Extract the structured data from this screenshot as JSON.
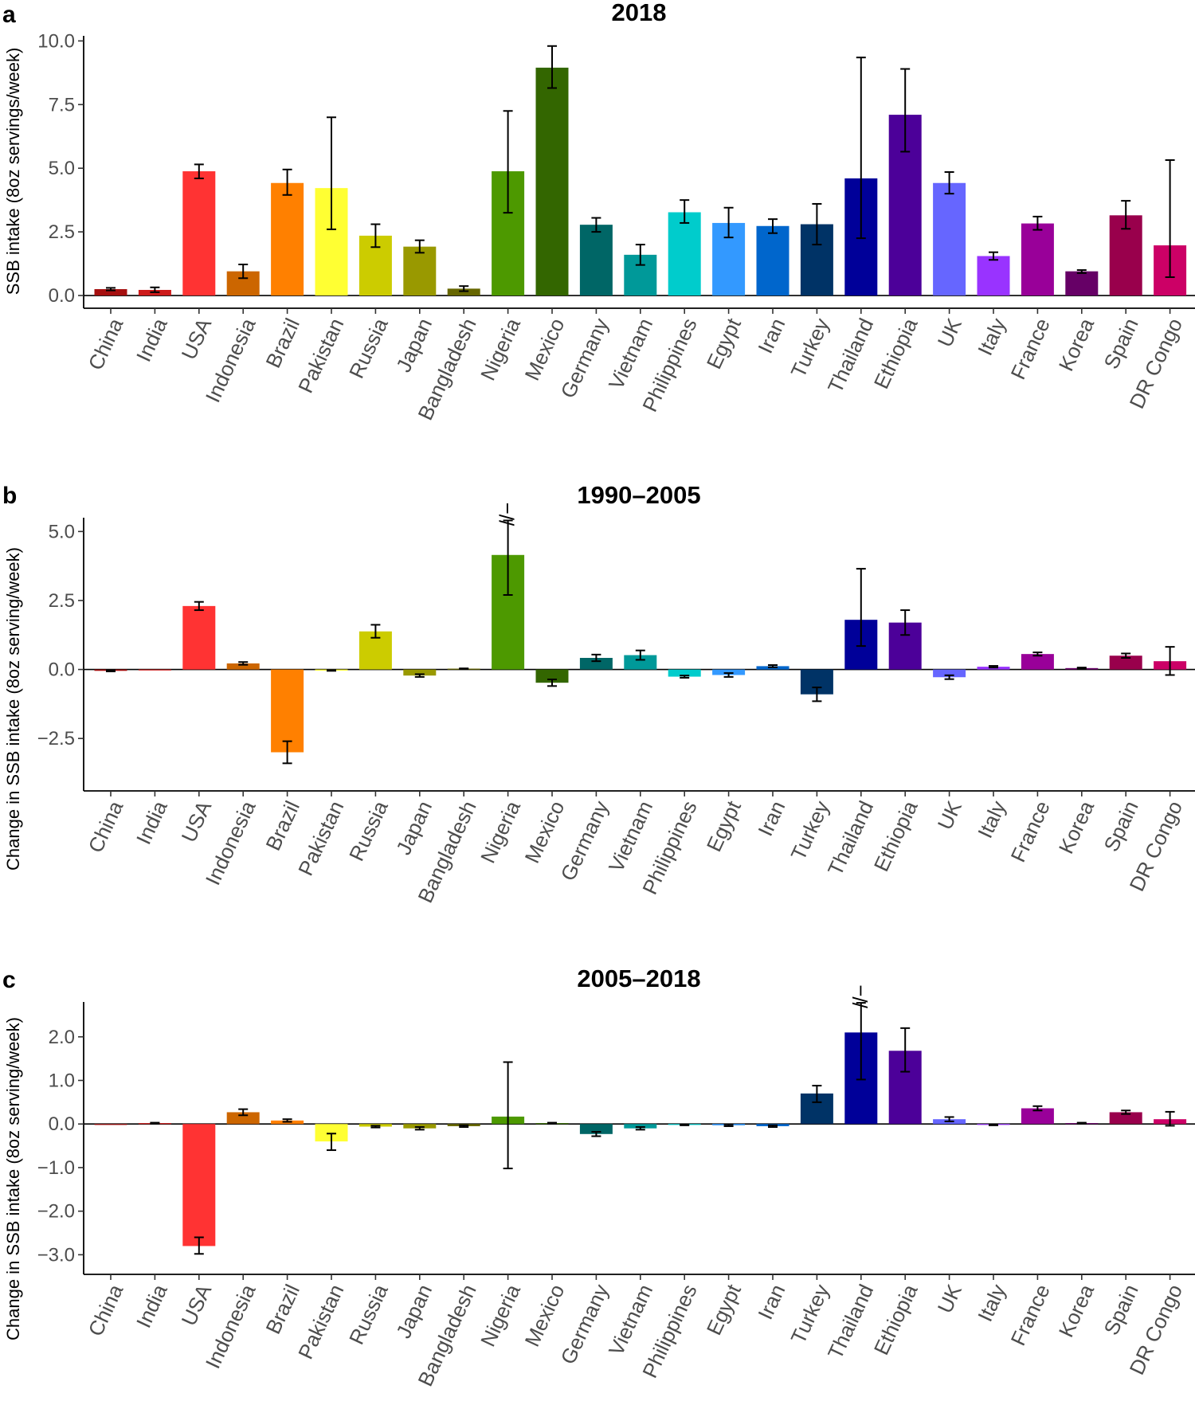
{
  "countries": [
    "China",
    "India",
    "USA",
    "Indonesia",
    "Brazil",
    "Pakistan",
    "Russia",
    "Japan",
    "Bangladesh",
    "Nigeria",
    "Mexico",
    "Germany",
    "Vietnam",
    "Philippines",
    "Egypt",
    "Iran",
    "Turkey",
    "Thailand",
    "Ethiopia",
    "UK",
    "Italy",
    "France",
    "Korea",
    "Spain",
    "DR Congo"
  ],
  "colors": [
    "#a50f0f",
    "#cc1a1a",
    "#ff3333",
    "#cc6600",
    "#ff8000",
    "#ffff33",
    "#cccc00",
    "#999900",
    "#666600",
    "#4d9900",
    "#336600",
    "#006666",
    "#009999",
    "#00cccc",
    "#3399ff",
    "#0066cc",
    "#003366",
    "#000099",
    "#4c0099",
    "#6666ff",
    "#9933ff",
    "#990099",
    "#660066",
    "#99004c",
    "#cc0066"
  ],
  "chart_data": [
    {
      "panel": "a",
      "type": "bar",
      "title": "2018",
      "ylabel": "SSB intake (8oz servings/week)",
      "ylim": [
        -0.5,
        10.2
      ],
      "yticks": [
        0,
        2.5,
        5,
        7.5,
        10
      ],
      "ytick_labels": [
        "0.0",
        "2.5",
        "5.0",
        "7.5",
        "10.0"
      ],
      "values": [
        0.25,
        0.22,
        4.88,
        0.95,
        4.42,
        4.22,
        2.35,
        1.92,
        0.27,
        4.88,
        8.95,
        2.78,
        1.6,
        3.27,
        2.85,
        2.73,
        2.8,
        4.6,
        7.1,
        4.42,
        1.55,
        2.83,
        0.95,
        3.15,
        1.97
      ],
      "err_low": [
        0.2,
        0.13,
        4.6,
        0.68,
        3.95,
        2.6,
        1.9,
        1.68,
        0.17,
        3.25,
        8.15,
        2.5,
        1.2,
        2.85,
        2.28,
        2.45,
        2.0,
        2.25,
        5.65,
        4.0,
        1.4,
        2.58,
        0.88,
        2.62,
        0.72
      ],
      "err_high": [
        0.3,
        0.32,
        5.15,
        1.22,
        4.95,
        7.0,
        2.8,
        2.17,
        0.37,
        7.25,
        9.8,
        3.05,
        2.0,
        3.75,
        3.45,
        3.0,
        3.6,
        9.35,
        8.9,
        4.85,
        1.7,
        3.1,
        1.0,
        3.72,
        5.32
      ],
      "break_marks": []
    },
    {
      "panel": "b",
      "type": "bar",
      "title": "1990–2005",
      "ylabel": "Change in SSB intake (8oz serving/week)",
      "ylim": [
        -4.4,
        5.5
      ],
      "yticks": [
        -2.5,
        0,
        2.5,
        5
      ],
      "ytick_labels": [
        "−2.5",
        "0.0",
        "2.5",
        "5.0"
      ],
      "values": [
        -0.05,
        0.0,
        2.3,
        0.22,
        -3.0,
        -0.04,
        1.38,
        -0.22,
        0.03,
        4.15,
        -0.48,
        0.42,
        0.52,
        -0.26,
        -0.2,
        0.12,
        -0.9,
        1.8,
        1.7,
        -0.28,
        0.1,
        0.56,
        0.05,
        0.5,
        0.3
      ],
      "err_low": [
        -0.07,
        0.0,
        2.15,
        0.17,
        -3.4,
        -0.05,
        1.15,
        -0.27,
        0.02,
        2.7,
        -0.6,
        0.3,
        0.35,
        -0.3,
        -0.27,
        0.08,
        -1.15,
        0.85,
        1.25,
        -0.35,
        0.07,
        0.5,
        0.03,
        0.42,
        -0.2
      ],
      "err_high": [
        -0.03,
        0.0,
        2.45,
        0.27,
        -2.6,
        -0.03,
        1.62,
        -0.17,
        0.04,
        5.4,
        -0.36,
        0.54,
        0.69,
        -0.22,
        -0.13,
        0.16,
        -0.65,
        3.65,
        2.15,
        -0.21,
        0.13,
        0.62,
        0.07,
        0.58,
        0.82
      ],
      "break_marks": [
        {
          "country": "Nigeria",
          "label": "//−"
        }
      ]
    },
    {
      "panel": "c",
      "type": "bar",
      "title": "2005–2018",
      "ylabel": "Change in SSB intake (8oz serving/week)",
      "ylim": [
        -3.45,
        2.8
      ],
      "yticks": [
        -3,
        -2,
        -1,
        0,
        1,
        2
      ],
      "ytick_labels": [
        "−3.0",
        "−2.0",
        "−1.0",
        "0.0",
        "1.0",
        "2.0"
      ],
      "values": [
        0.0,
        0.02,
        -2.8,
        0.27,
        0.08,
        -0.4,
        -0.06,
        -0.1,
        -0.05,
        0.17,
        0.02,
        -0.23,
        -0.1,
        -0.02,
        -0.03,
        -0.05,
        0.7,
        2.1,
        1.68,
        0.11,
        -0.02,
        0.36,
        0.02,
        0.27,
        0.11
      ],
      "err_low": [
        0.0,
        0.01,
        -2.98,
        0.2,
        0.05,
        -0.6,
        -0.08,
        -0.13,
        -0.07,
        -1.02,
        0.01,
        -0.28,
        -0.13,
        -0.03,
        -0.05,
        -0.07,
        0.5,
        1.02,
        1.2,
        0.06,
        -0.03,
        0.31,
        0.01,
        0.23,
        -0.04
      ],
      "err_high": [
        0.0,
        0.03,
        -2.6,
        0.34,
        0.11,
        -0.22,
        -0.04,
        -0.07,
        -0.03,
        1.42,
        0.03,
        -0.18,
        -0.07,
        -0.01,
        -0.01,
        -0.03,
        0.88,
        2.78,
        2.2,
        0.16,
        -0.01,
        0.41,
        0.03,
        0.31,
        0.28
      ],
      "break_marks": [
        {
          "country": "Thailand",
          "label": "//−"
        }
      ]
    }
  ]
}
